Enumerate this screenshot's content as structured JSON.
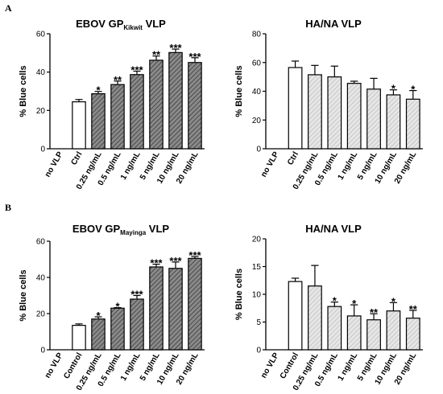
{
  "colors": {
    "axis": "#000000",
    "white_bar": "#ffffff",
    "dark_bar": "#6a6a6a",
    "light_bar": "#d8d8d8"
  },
  "panels": [
    {
      "letter": "A"
    },
    {
      "letter": "B"
    }
  ],
  "chart_data": [
    {
      "type": "bar",
      "title": "EBOV GP",
      "title_sub": "Kikwit",
      "title_end": " VLP",
      "ylabel": "% Blue cells",
      "ylim": [
        0,
        60
      ],
      "yticks": [
        "0",
        "20",
        "40",
        "60"
      ],
      "fill": "hatch-dark",
      "categories": [
        "no VLP",
        "Ctrl",
        "0.25 ng/mL",
        "0.5 ng/mL",
        "1 ng/mL",
        "5 ng/mL",
        "10 ng/mL",
        "20 ng/mL"
      ],
      "values": [
        0,
        24.5,
        28.7,
        33.5,
        38.7,
        46.2,
        50.2,
        45.0
      ],
      "errors": [
        0,
        1.2,
        1.2,
        1.8,
        1.8,
        2.2,
        1.8,
        2.5
      ],
      "significance": [
        "",
        "",
        "*",
        "**",
        "***",
        "**",
        "***",
        "***"
      ]
    },
    {
      "type": "bar",
      "title": "HA/NA VLP",
      "title_sub": "",
      "title_end": "",
      "ylabel": "% Blue cells",
      "ylim": [
        0,
        80
      ],
      "yticks": [
        "0",
        "20",
        "40",
        "60",
        "80"
      ],
      "fill": "hatch-light",
      "categories": [
        "no VLP",
        "Ctrl",
        "0.25 ng/mL",
        "0.5 ng/mL",
        "1 ng/mL",
        "5 ng/mL",
        "10 ng/mL",
        "20 ng/mL"
      ],
      "values": [
        0,
        56.5,
        51.5,
        50.0,
        45.5,
        41.5,
        37.5,
        34.5
      ],
      "errors": [
        0,
        4.5,
        6.5,
        7.5,
        1.5,
        7.5,
        3.5,
        6.0
      ],
      "significance": [
        "",
        "",
        "",
        "",
        "",
        "",
        "*",
        "*"
      ]
    },
    {
      "type": "bar",
      "title": "EBOV GP",
      "title_sub": "Mayinga",
      "title_end": " VLP",
      "ylabel": "% Blue cells",
      "ylim": [
        0,
        60
      ],
      "yticks": [
        "0",
        "20",
        "40",
        "60"
      ],
      "fill": "hatch-dark",
      "categories": [
        "no VLP",
        "Control",
        "0.25 ng/mL",
        "0.5 ng/mL",
        "1 ng/mL",
        "5 ng/mL",
        "10 ng/mL",
        "20 ng/mL"
      ],
      "values": [
        0,
        13.5,
        17.0,
        23.0,
        28.0,
        45.8,
        45.0,
        50.5
      ],
      "errors": [
        0,
        0.8,
        1.2,
        0.3,
        2.0,
        1.5,
        3.5,
        1.0
      ],
      "significance": [
        "",
        "",
        "*",
        "*",
        "***",
        "***",
        "***",
        "***"
      ]
    },
    {
      "type": "bar",
      "title": "HA/NA VLP",
      "title_sub": "",
      "title_end": "",
      "ylabel": "% Blue cells",
      "ylim": [
        0,
        20
      ],
      "yticks": [
        "0",
        "5",
        "10",
        "15",
        "20"
      ],
      "fill": "hatch-light",
      "categories": [
        "no VLP",
        "Control",
        "0.25 ng/mL",
        "0.5 ng/mL",
        "1 ng/mL",
        "5 ng/mL",
        "10 ng/mL",
        "20 ng/mL"
      ],
      "values": [
        0,
        12.3,
        11.5,
        7.8,
        6.1,
        5.4,
        7.0,
        5.7
      ],
      "errors": [
        0,
        0.6,
        3.7,
        0.8,
        2.0,
        1.1,
        1.5,
        1.4
      ],
      "significance": [
        "",
        "",
        "",
        "*",
        "*",
        "**",
        "*",
        "**"
      ]
    }
  ]
}
